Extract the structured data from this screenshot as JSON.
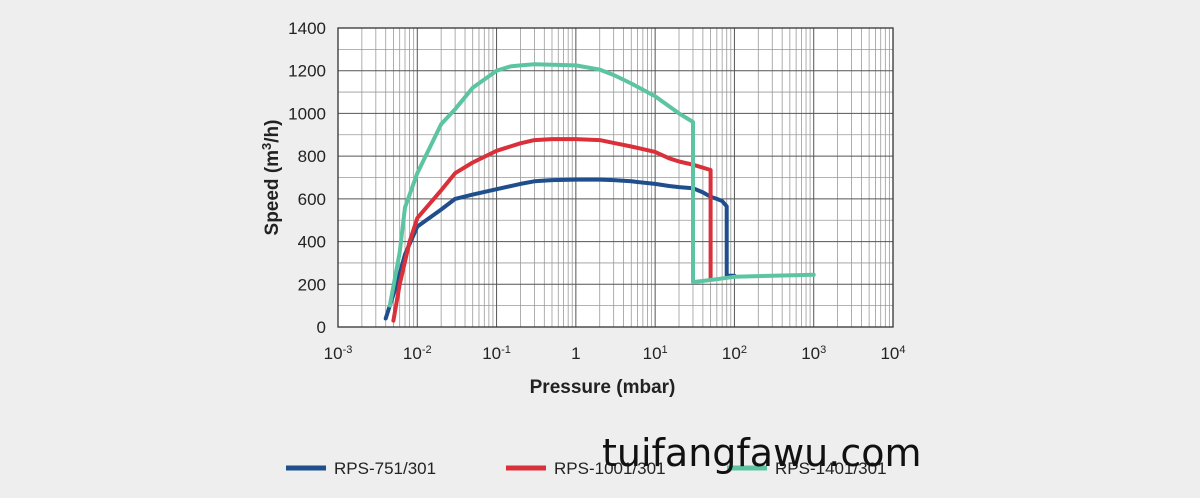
{
  "chart_data": {
    "type": "line",
    "title": "",
    "xlabel": "Pressure (mbar)",
    "ylabel": "Speed (m3/h)",
    "ylabel_parts": {
      "main": "Speed (m",
      "sup": "3",
      "end": "/h)"
    },
    "x_scale": "log",
    "xlim": [
      0.001,
      10000
    ],
    "ylim": [
      0,
      1400
    ],
    "x_ticks": [
      {
        "value": 0.001,
        "base": "10",
        "exp": "-3"
      },
      {
        "value": 0.01,
        "base": "10",
        "exp": "-2"
      },
      {
        "value": 0.1,
        "base": "10",
        "exp": "-1"
      },
      {
        "value": 1,
        "base": "1",
        "exp": ""
      },
      {
        "value": 10,
        "base": "10",
        "exp": "1"
      },
      {
        "value": 100,
        "base": "10",
        "exp": "2"
      },
      {
        "value": 1000,
        "base": "10",
        "exp": "3"
      },
      {
        "value": 10000,
        "base": "10",
        "exp": "4"
      }
    ],
    "y_ticks": [
      0,
      200,
      400,
      600,
      800,
      1000,
      1200,
      1400
    ],
    "grid": true,
    "legend_position": "bottom",
    "series": [
      {
        "name": "RPS-751/301",
        "color": "#1f4e8c",
        "points": [
          [
            0.004,
            40
          ],
          [
            0.0055,
            200
          ],
          [
            0.007,
            340
          ],
          [
            0.01,
            470
          ],
          [
            0.02,
            550
          ],
          [
            0.03,
            600
          ],
          [
            0.05,
            620
          ],
          [
            0.1,
            645
          ],
          [
            0.2,
            670
          ],
          [
            0.3,
            682
          ],
          [
            0.5,
            688
          ],
          [
            1,
            690
          ],
          [
            2,
            690
          ],
          [
            3,
            688
          ],
          [
            5,
            682
          ],
          [
            10,
            670
          ],
          [
            15,
            660
          ],
          [
            20,
            655
          ],
          [
            30,
            650
          ],
          [
            40,
            630
          ],
          [
            50,
            610
          ],
          [
            60,
            600
          ],
          [
            70,
            590
          ],
          [
            80,
            565
          ],
          [
            80,
            240
          ],
          [
            100,
            240
          ]
        ]
      },
      {
        "name": "RPS-1001/301",
        "color": "#d9303a",
        "points": [
          [
            0.005,
            30
          ],
          [
            0.006,
            200
          ],
          [
            0.008,
            400
          ],
          [
            0.01,
            510
          ],
          [
            0.02,
            640
          ],
          [
            0.03,
            720
          ],
          [
            0.05,
            770
          ],
          [
            0.1,
            825
          ],
          [
            0.2,
            860
          ],
          [
            0.3,
            875
          ],
          [
            0.5,
            880
          ],
          [
            1,
            880
          ],
          [
            2,
            875
          ],
          [
            3,
            862
          ],
          [
            5,
            845
          ],
          [
            10,
            820
          ],
          [
            15,
            790
          ],
          [
            20,
            775
          ],
          [
            30,
            760
          ],
          [
            50,
            735
          ],
          [
            50,
            230
          ]
        ]
      },
      {
        "name": "RPS-1401/301",
        "color": "#5cc4a2",
        "points": [
          [
            0.0045,
            100
          ],
          [
            0.006,
            350
          ],
          [
            0.007,
            560
          ],
          [
            0.01,
            720
          ],
          [
            0.02,
            950
          ],
          [
            0.03,
            1020
          ],
          [
            0.05,
            1120
          ],
          [
            0.1,
            1200
          ],
          [
            0.15,
            1220
          ],
          [
            0.2,
            1225
          ],
          [
            0.3,
            1230
          ],
          [
            0.5,
            1228
          ],
          [
            1,
            1225
          ],
          [
            2,
            1205
          ],
          [
            3,
            1180
          ],
          [
            5,
            1140
          ],
          [
            10,
            1080
          ],
          [
            20,
            1000
          ],
          [
            30,
            960
          ],
          [
            30,
            210
          ],
          [
            50,
            220
          ],
          [
            100,
            235
          ],
          [
            300,
            240
          ],
          [
            1000,
            245
          ]
        ]
      }
    ]
  },
  "watermark": "tuifangfawu.com"
}
